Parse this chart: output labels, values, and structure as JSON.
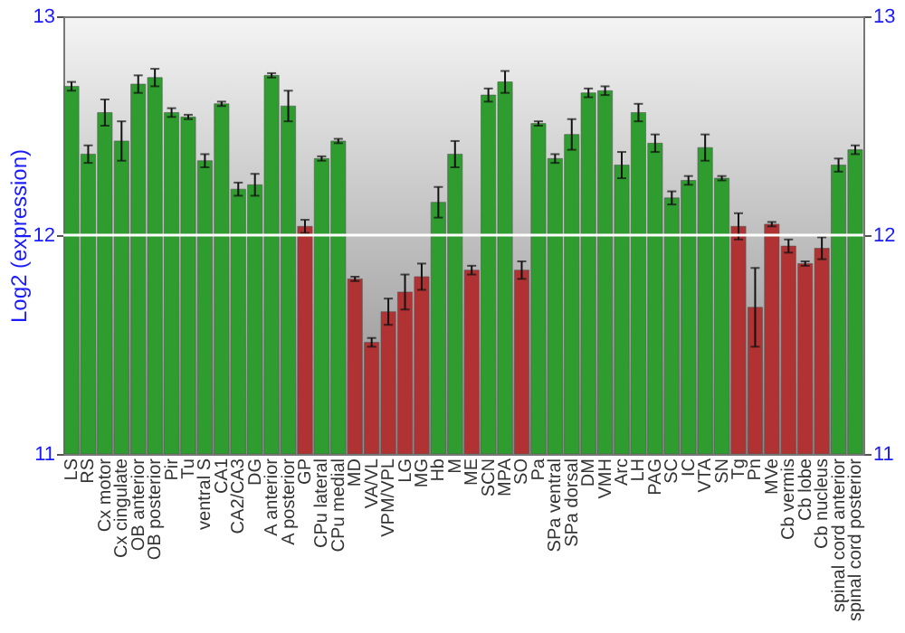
{
  "chart_data": {
    "type": "bar",
    "ylabel": "Log2 (expression)",
    "categories": [
      "LS",
      "RS",
      "Cx motor",
      "Cx cingulate",
      "OB anterior",
      "OB posterior",
      "Pir",
      "Tu",
      "ventral S",
      "CA1",
      "CA2/CA3",
      "DG",
      "A anterior",
      "A posterior",
      "GP",
      "CPu lateral",
      "CPu medial",
      "MD",
      "VA/VL",
      "VPM/VPL",
      "LG",
      "MG",
      "Hb",
      "M",
      "ME",
      "SCN",
      "MPA",
      "SO",
      "Pa",
      "SPa ventral",
      "SPa dorsal",
      "DM",
      "VMH",
      "Arc",
      "LH",
      "PAG",
      "SC",
      "IC",
      "VTA",
      "SN",
      "Tg",
      "Pn",
      "MVe",
      "Cb vermis",
      "Cb lobe",
      "Cb nucleus",
      "spinal cord anterior",
      "spinal cord posterior"
    ],
    "values": [
      12.68,
      12.37,
      12.56,
      12.43,
      12.69,
      12.72,
      12.56,
      12.54,
      12.34,
      12.6,
      12.21,
      12.23,
      12.73,
      12.59,
      12.04,
      12.35,
      12.43,
      11.8,
      11.51,
      11.65,
      11.74,
      11.81,
      12.15,
      12.37,
      11.84,
      12.64,
      12.7,
      11.84,
      12.51,
      12.35,
      12.46,
      12.65,
      12.66,
      12.32,
      12.56,
      12.42,
      12.17,
      12.25,
      12.4,
      12.26,
      12.04,
      11.67,
      12.05,
      11.95,
      11.87,
      11.94,
      12.32,
      12.39
    ],
    "errors": [
      0.02,
      0.04,
      0.06,
      0.09,
      0.04,
      0.04,
      0.02,
      0.01,
      0.03,
      0.01,
      0.03,
      0.05,
      0.01,
      0.07,
      0.03,
      0.01,
      0.01,
      0.01,
      0.02,
      0.06,
      0.08,
      0.06,
      0.07,
      0.06,
      0.02,
      0.03,
      0.05,
      0.04,
      0.01,
      0.02,
      0.07,
      0.02,
      0.02,
      0.06,
      0.04,
      0.04,
      0.03,
      0.02,
      0.06,
      0.01,
      0.06,
      0.18,
      0.01,
      0.03,
      0.01,
      0.05,
      0.03,
      0.02
    ],
    "colors": [
      "#2e9c2e",
      "#2e9c2e",
      "#2e9c2e",
      "#2e9c2e",
      "#2e9c2e",
      "#2e9c2e",
      "#2e9c2e",
      "#2e9c2e",
      "#2e9c2e",
      "#2e9c2e",
      "#2e9c2e",
      "#2e9c2e",
      "#2e9c2e",
      "#2e9c2e",
      "#b03232",
      "#2e9c2e",
      "#2e9c2e",
      "#b03232",
      "#b03232",
      "#b03232",
      "#b03232",
      "#b03232",
      "#2e9c2e",
      "#2e9c2e",
      "#b03232",
      "#2e9c2e",
      "#2e9c2e",
      "#b03232",
      "#2e9c2e",
      "#2e9c2e",
      "#2e9c2e",
      "#2e9c2e",
      "#2e9c2e",
      "#2e9c2e",
      "#2e9c2e",
      "#2e9c2e",
      "#2e9c2e",
      "#2e9c2e",
      "#2e9c2e",
      "#2e9c2e",
      "#b03232",
      "#b03232",
      "#b03232",
      "#b03232",
      "#b03232",
      "#b03232",
      "#2e9c2e",
      "#2e9c2e"
    ],
    "ylim": [
      11,
      13
    ],
    "yticks": [
      11,
      12,
      13
    ],
    "y2lim": [
      11,
      13
    ],
    "y2ticks": [
      11,
      12,
      13
    ],
    "ref_lines": [
      {
        "axis": "y",
        "value": 12,
        "color": "#ffffff"
      }
    ],
    "grid": false
  }
}
